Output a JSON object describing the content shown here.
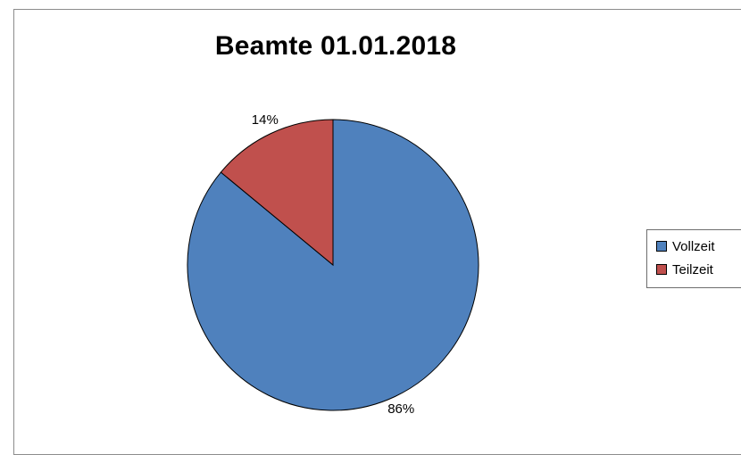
{
  "chart_data": {
    "type": "pie",
    "title": "Beamte 01.01.2018",
    "categories": [
      "Vollzeit",
      "Teilzeit"
    ],
    "values": [
      86,
      14
    ],
    "data_labels": [
      "86%",
      "14%"
    ],
    "colors": [
      "#4f81bd",
      "#c0504d"
    ],
    "legend_placement": "right"
  }
}
